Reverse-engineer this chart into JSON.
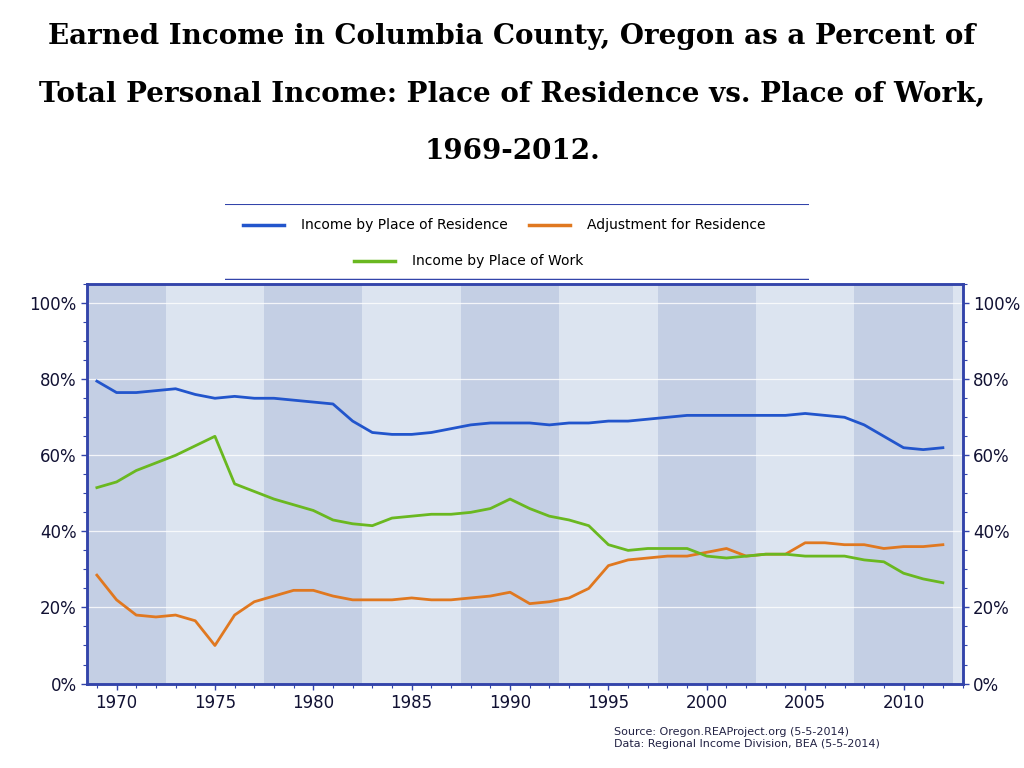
{
  "title_line1": "Earned Income in Columbia County, Oregon as a Percent of",
  "title_line2": "Total Personal Income: Place of Residence vs. Place of Work,",
  "title_line3": "1969-2012.",
  "title_fontsize": 20,
  "title_fontweight": "bold",
  "title_fontfamily": "DejaVu Serif",
  "source_text": "Source: Oregon.REAProject.org (5-5-2014)\nData: Regional Income Division, BEA (5-5-2014)",
  "legend_labels": [
    "Income by Place of Residence",
    "Adjustment for Residence",
    "Income by Place of Work"
  ],
  "legend_colors": [
    "#2255cc",
    "#e07820",
    "#6ab820"
  ],
  "plot_bg_color": "#dce4f0",
  "stripe_dark": "#c4cfe4",
  "stripe_light": "#dce4f0",
  "legend_bg": "#d8e0ee",
  "border_color": "#3344aa",
  "years": [
    1969,
    1970,
    1971,
    1972,
    1973,
    1974,
    1975,
    1976,
    1977,
    1978,
    1979,
    1980,
    1981,
    1982,
    1983,
    1984,
    1985,
    1986,
    1987,
    1988,
    1989,
    1990,
    1991,
    1992,
    1993,
    1994,
    1995,
    1996,
    1997,
    1998,
    1999,
    2000,
    2001,
    2002,
    2003,
    2004,
    2005,
    2006,
    2007,
    2008,
    2009,
    2010,
    2011,
    2012
  ],
  "blue": [
    79.5,
    76.5,
    76.5,
    77.0,
    77.5,
    76.0,
    75.0,
    75.5,
    75.0,
    75.0,
    74.5,
    74.0,
    73.5,
    69.0,
    66.0,
    65.5,
    65.5,
    66.0,
    67.0,
    68.0,
    68.5,
    68.5,
    68.5,
    68.0,
    68.5,
    68.5,
    69.0,
    69.0,
    69.5,
    70.0,
    70.5,
    70.5,
    70.5,
    70.5,
    70.5,
    70.5,
    71.0,
    70.5,
    70.0,
    68.0,
    65.0,
    62.0,
    61.5,
    62.0
  ],
  "orange": [
    28.5,
    22.0,
    18.0,
    17.5,
    18.0,
    16.5,
    10.0,
    18.0,
    21.5,
    23.0,
    24.5,
    24.5,
    23.0,
    22.0,
    22.0,
    22.0,
    22.5,
    22.0,
    22.0,
    22.5,
    23.0,
    24.0,
    21.0,
    21.5,
    22.5,
    25.0,
    31.0,
    32.5,
    33.0,
    33.5,
    33.5,
    34.5,
    35.5,
    33.5,
    34.0,
    34.0,
    37.0,
    37.0,
    36.5,
    36.5,
    35.5,
    36.0,
    36.0,
    36.5
  ],
  "green": [
    51.5,
    53.0,
    56.0,
    58.0,
    60.0,
    62.5,
    65.0,
    52.5,
    50.5,
    48.5,
    47.0,
    45.5,
    43.0,
    42.0,
    41.5,
    43.5,
    44.0,
    44.5,
    44.5,
    45.0,
    46.0,
    48.5,
    46.0,
    44.0,
    43.0,
    41.5,
    36.5,
    35.0,
    35.5,
    35.5,
    35.5,
    33.5,
    33.0,
    33.5,
    34.0,
    34.0,
    33.5,
    33.5,
    33.5,
    32.5,
    32.0,
    29.0,
    27.5,
    26.5
  ],
  "xlim": [
    1968.5,
    2013.0
  ],
  "ylim": [
    0,
    105
  ],
  "yticks": [
    0,
    20,
    40,
    60,
    80,
    100
  ],
  "xticks": [
    1970,
    1975,
    1980,
    1985,
    1990,
    1995,
    2000,
    2005,
    2010
  ]
}
